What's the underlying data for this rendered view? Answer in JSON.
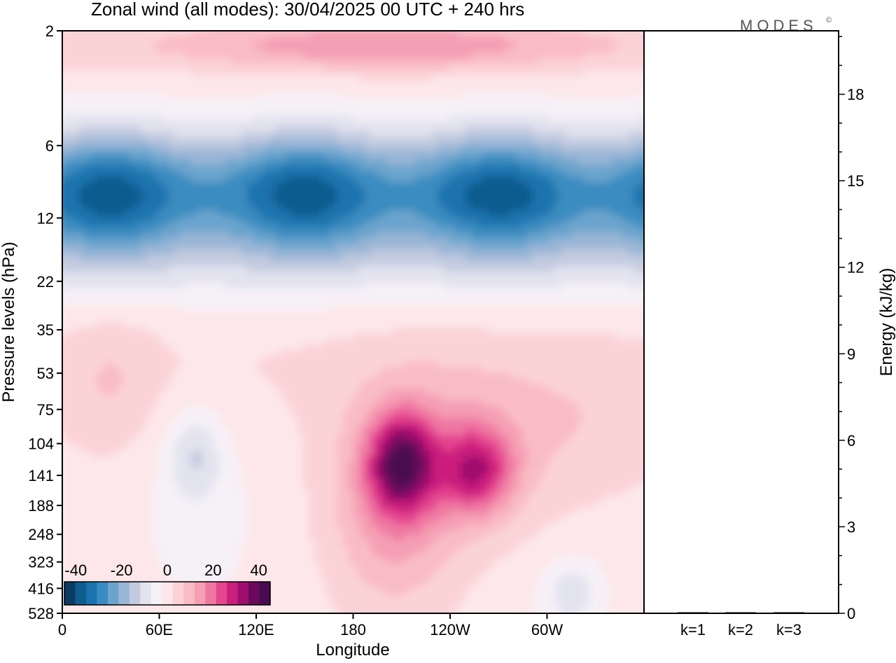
{
  "title": "Zonal wind (all modes):  30/04/2025  00 UTC  + 240 hrs",
  "brand": "MODES",
  "brand_mark": "©",
  "colors": {
    "scale": [
      "#0b3b63",
      "#0f5c8f",
      "#1a73ae",
      "#3a8cc0",
      "#6aa4cd",
      "#9ab6d6",
      "#c3cbe0",
      "#e3e3ef",
      "#f6f1f7",
      "#fde7ea",
      "#fbd3d7",
      "#f9bcc5",
      "#f59fb4",
      "#ef78a3",
      "#e5458f",
      "#cb1f7d",
      "#9e0e6d",
      "#6a0a5d",
      "#4a0a4f"
    ],
    "accent_brand": "#555555"
  },
  "chart_data": [
    {
      "type": "heatmap",
      "title": "Zonal wind (all modes):  30/04/2025  00 UTC  + 240 hrs",
      "xlabel": "Longitude",
      "ylabel": "Pressure levels (hPa)",
      "x_ticks": [
        "0",
        "60E",
        "120E",
        "180",
        "120W",
        "60W"
      ],
      "y_ticks": [
        "2",
        "6",
        "12",
        "22",
        "35",
        "53",
        "75",
        "104",
        "141",
        "188",
        "248",
        "323",
        "416",
        "528"
      ],
      "y_scale": "log",
      "xlim": [
        0,
        360
      ],
      "ylim": [
        528,
        2
      ],
      "colorbar": {
        "ticks": [
          "-40",
          "-20",
          "0",
          "20",
          "40"
        ],
        "range": [
          -45,
          45
        ],
        "placement": "bottom-left"
      },
      "features": [
        {
          "description_type": "easterly",
          "lon": [
            0,
            360
          ],
          "p_range": [
            6,
            22
          ],
          "min_value": -40
        },
        {
          "description_type": "westerly",
          "lon": [
            30,
            300
          ],
          "p_range": [
            2,
            4
          ],
          "max_value": 15
        },
        {
          "description_type": "westerly",
          "lon_center": 210,
          "p_center": 130,
          "max_value": 28
        },
        {
          "description_type": "westerly",
          "lon_center": 255,
          "p_center": 135,
          "max_value": 22
        },
        {
          "description_type": "easterly",
          "lon_center": 82,
          "p_center": 115,
          "min_value": -10
        },
        {
          "description_type": "easterly",
          "lon_center": 315,
          "p_center": 430,
          "min_value": -10
        }
      ]
    },
    {
      "type": "bar",
      "categories": [
        "k=1",
        "k=2",
        "k=3"
      ],
      "values": [
        0.02,
        0.02,
        0.01
      ],
      "ylabel": "Energy (kJ/kg)",
      "ylim": [
        0,
        20.2
      ],
      "y_ticks": [
        0,
        3,
        6,
        9,
        12,
        15,
        18
      ]
    }
  ]
}
